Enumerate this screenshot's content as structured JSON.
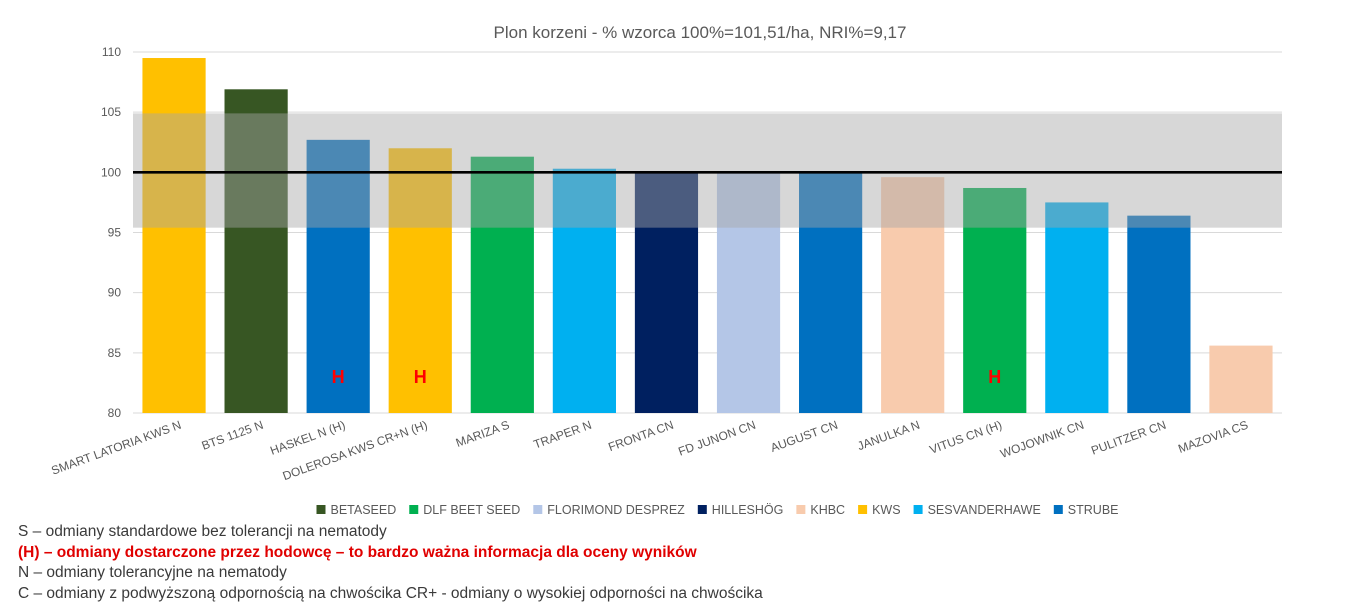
{
  "chart_data": {
    "type": "bar",
    "title": "Plon korzeni - % wzorca 100%=101,51/ha, NRI%=9,17",
    "ylim": [
      80,
      110
    ],
    "yticks": [
      80,
      85,
      90,
      95,
      100,
      105,
      110
    ],
    "grid": true,
    "reference_line": 100,
    "highlight_band": [
      95.4,
      104.9
    ],
    "categories": [
      "SMART LATORIA KWS N",
      "BTS 1125 N",
      "HASKEL N (H)",
      "DOLEROSA KWS CR+N (H)",
      "MARIZA S",
      "TRAPER N",
      "FRONTA CN",
      "FD JUNON CN",
      "AUGUST CN",
      "JANULKA N",
      "VITUS CN (H)",
      "WOJOWNIK CN",
      "PULITZER CN",
      "MAZOVIA CS"
    ],
    "values": [
      109.5,
      106.9,
      102.7,
      102.0,
      101.3,
      100.3,
      100.1,
      100.0,
      100.0,
      99.6,
      98.7,
      97.5,
      96.4,
      85.6
    ],
    "breeders": [
      "KWS",
      "BETASEED",
      "STRUBE",
      "KWS",
      "DLF BEET SEED",
      "SESVANDERHAWE",
      "HILLESHÖG",
      "FLORIMOND DESPREZ",
      "STRUBE",
      "KHBC",
      "DLF BEET SEED",
      "SESVANDERHAWE",
      "STRUBE",
      "KHBC"
    ],
    "bar_labels": [
      "",
      "",
      "H",
      "H",
      "",
      "",
      "",
      "",
      "",
      "",
      "H",
      "",
      "",
      ""
    ],
    "legend_position": "bottom",
    "legend": [
      {
        "name": "BETASEED",
        "color": "#375623"
      },
      {
        "name": "DLF BEET SEED",
        "color": "#00B050"
      },
      {
        "name": "FLORIMOND DESPREZ",
        "color": "#B4C6E7"
      },
      {
        "name": "HILLESHÖG",
        "color": "#002060"
      },
      {
        "name": "KHBC",
        "color": "#F8CBAD"
      },
      {
        "name": "KWS",
        "color": "#FFC000"
      },
      {
        "name": "SESVANDERHAWE",
        "color": "#00B0F0"
      },
      {
        "name": "STRUBE",
        "color": "#0070C0"
      }
    ]
  },
  "notes": {
    "line1": "S – odmiany standardowe bez tolerancji na nematody",
    "line2": "(H) – odmiany dostarczone przez hodowcę – to bardzo ważna informacja dla oceny wyników",
    "line3": "N – odmiany tolerancyjne na nematody",
    "line4": "C – odmiany z podwyższoną odpornością na chwościka  CR+ - odmiany o wysokiej odporności na chwościka"
  }
}
